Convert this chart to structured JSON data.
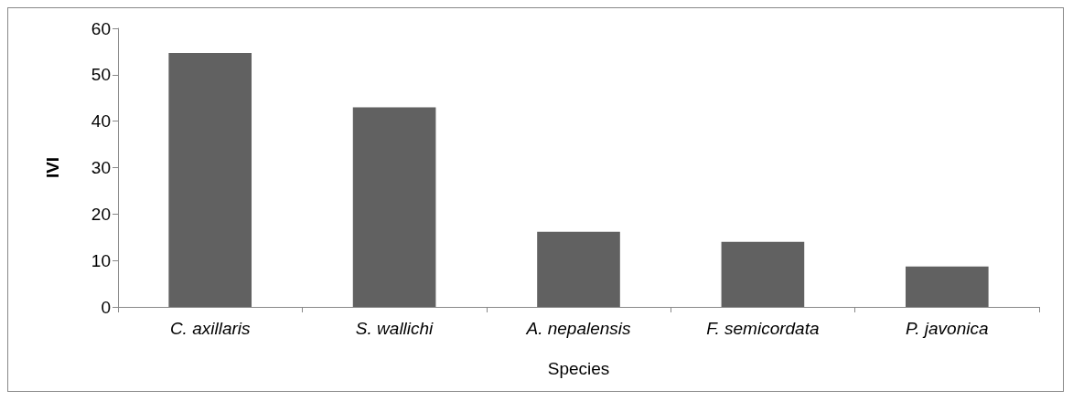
{
  "chart_data": {
    "type": "bar",
    "xlabel": "Species",
    "ylabel": "IVI",
    "categories": [
      "C. axillaris",
      "S. wallichi",
      "A. nepalensis",
      "F. semicordata",
      "P. javonica"
    ],
    "values": [
      54.7,
      43.0,
      16.2,
      14.0,
      8.7
    ],
    "color": "#616161",
    "ylim": [
      0,
      60
    ],
    "yticks": [
      0,
      10,
      20,
      30,
      40,
      50,
      60
    ],
    "grid": false
  }
}
